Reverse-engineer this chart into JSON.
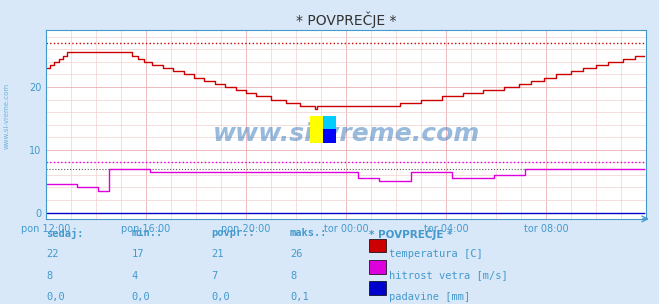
{
  "title": "* POVPREČJE *",
  "bg_color": "#d8e8f8",
  "plot_bg_color": "#ffffff",
  "grid_color_major": "#e8a0a0",
  "grid_color_minor": "#f0d0d0",
  "text_color": "#4499cc",
  "axis_color": "#4499cc",
  "title_color": "#333333",
  "ylim": [
    -1,
    29
  ],
  "xlim_pts": 288,
  "yticks": [
    0,
    10,
    20
  ],
  "dotted_red_y": 27.0,
  "dotted_pink_y": 8.0,
  "dotted_black_y": 7.0,
  "temp_color": "#cc0000",
  "wind_color": "#dd00dd",
  "rain_color": "#0000cc",
  "watermark": "www.si-vreme.com",
  "watermark_color": "#3377bb",
  "legend_title": "* POVPREČJE *",
  "xtick_labels": [
    "pon 12:00",
    "pon 16:00",
    "pon 20:00",
    "tor 00:00",
    "tor 04:00",
    "tor 08:00"
  ],
  "xtick_positions": [
    0,
    48,
    96,
    144,
    192,
    240
  ],
  "table_headers": [
    "sedaj:",
    "min.:",
    "povpr.:",
    "maks.:"
  ],
  "table_rows": [
    {
      "vals": [
        "22",
        "17",
        "21",
        "26"
      ],
      "color": "#cc0000",
      "label": "temperatura [C]"
    },
    {
      "vals": [
        "8",
        "4",
        "7",
        "8"
      ],
      "color": "#dd00dd",
      "label": "hitrost vetra [m/s]"
    },
    {
      "vals": [
        "0,0",
        "0,0",
        "0,0",
        "0,1"
      ],
      "color": "#0000cc",
      "label": "padavine [mm]"
    }
  ]
}
